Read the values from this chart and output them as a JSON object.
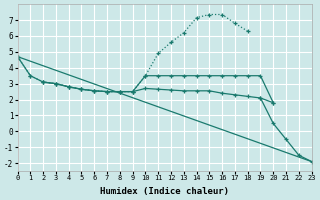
{
  "xlabel": "Humidex (Indice chaleur)",
  "bg_color": "#cde8e8",
  "grid_color": "#ffffff",
  "line_color": "#1a7a6e",
  "xlim": [
    0,
    23
  ],
  "ylim": [
    -2.5,
    8.0
  ],
  "xticks": [
    0,
    1,
    2,
    3,
    4,
    5,
    6,
    7,
    8,
    9,
    10,
    11,
    12,
    13,
    14,
    15,
    16,
    17,
    18,
    19,
    20,
    21,
    22,
    23
  ],
  "yticks": [
    -2,
    -1,
    0,
    1,
    2,
    3,
    4,
    5,
    6,
    7
  ],
  "lines": [
    {
      "x": [
        0,
        1,
        2,
        3,
        4,
        5,
        6,
        7,
        8,
        9,
        10,
        11,
        12,
        13,
        14,
        15,
        16,
        17,
        18
      ],
      "y": [
        4.7,
        3.5,
        3.1,
        3.0,
        2.8,
        2.65,
        2.55,
        2.5,
        2.5,
        2.5,
        3.5,
        4.9,
        5.6,
        6.2,
        7.15,
        7.35,
        7.35,
        6.8,
        6.3
      ],
      "style": "dotted",
      "marker": true
    },
    {
      "x": [
        0,
        1,
        2,
        3,
        4,
        5,
        6,
        7,
        8,
        9,
        10,
        11,
        12,
        13,
        14,
        15,
        16,
        17,
        18,
        19,
        20
      ],
      "y": [
        4.7,
        3.5,
        3.1,
        3.0,
        2.8,
        2.65,
        2.55,
        2.5,
        2.5,
        2.5,
        3.5,
        3.5,
        3.5,
        3.5,
        3.5,
        3.5,
        3.5,
        3.5,
        3.5,
        3.5,
        1.8
      ],
      "style": "solid",
      "marker": true
    },
    {
      "x": [
        2,
        3,
        4,
        5,
        6,
        7,
        8,
        9,
        10,
        11,
        12,
        13,
        14,
        15,
        16,
        17,
        18,
        19,
        20
      ],
      "y": [
        3.1,
        3.0,
        2.8,
        2.65,
        2.55,
        2.5,
        2.5,
        2.5,
        2.7,
        2.65,
        2.6,
        2.55,
        2.55,
        2.55,
        2.4,
        2.3,
        2.2,
        2.1,
        1.8
      ],
      "style": "solid",
      "marker": true
    },
    {
      "x": [
        0,
        23
      ],
      "y": [
        4.7,
        -1.9
      ],
      "style": "solid",
      "marker": false
    },
    {
      "x": [
        19,
        20,
        21,
        22,
        23
      ],
      "y": [
        2.1,
        0.5,
        -0.5,
        -1.5,
        -1.9
      ],
      "style": "solid",
      "marker": true
    }
  ]
}
